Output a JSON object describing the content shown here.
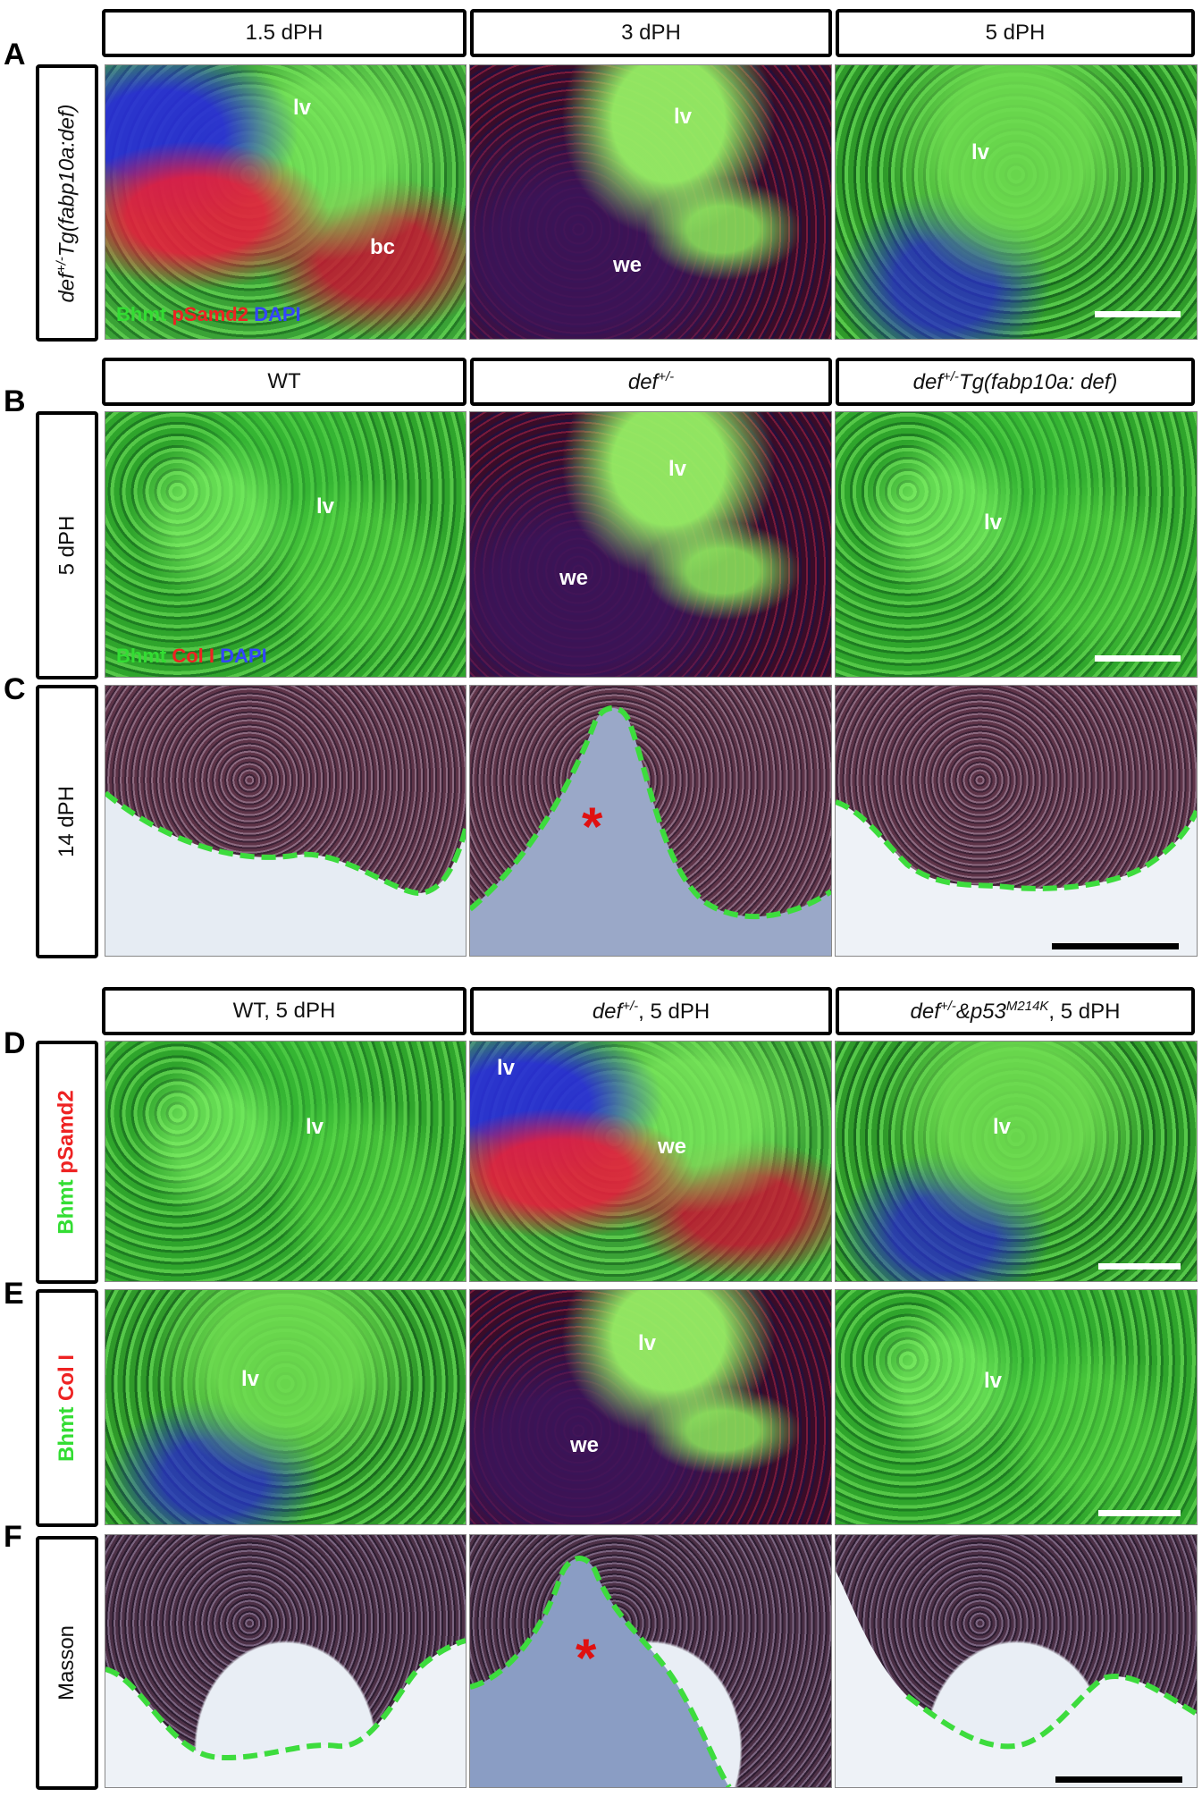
{
  "figure": {
    "rows": {
      "A": {
        "letter": "A",
        "side_label": {
          "pre": "def",
          "sup": "+/-",
          "post": "Tg(fabp10a:def)"
        },
        "headers": [
          {
            "main": "1.5 dPH"
          },
          {
            "main": "3 dPH"
          },
          {
            "main": "5 dPH"
          }
        ],
        "panel_labels": [
          [
            "lv",
            "bc"
          ],
          [
            "lv",
            "we"
          ],
          [
            "lv"
          ]
        ],
        "stain": {
          "green": "Bhmt",
          "red": "pSamd2",
          "blue": "DAPI"
        }
      },
      "B": {
        "letter": "B",
        "side_label": {
          "main": "5 dPH"
        },
        "headers": [
          {
            "main": "WT"
          },
          {
            "pre": "def",
            "sup": "+/-"
          },
          {
            "pre": "def",
            "sup": "+/-",
            "post": "Tg(fabp10a: def)"
          }
        ],
        "panel_labels": [
          [
            "lv"
          ],
          [
            "lv",
            "we"
          ],
          [
            "lv"
          ]
        ],
        "stain": {
          "green": "Bhmt",
          "red": "Col I",
          "blue": "DAPI"
        }
      },
      "C": {
        "letter": "C",
        "side_label": {
          "main": "14 dPH"
        },
        "asterisk": "*"
      },
      "D": {
        "letter": "D",
        "headers": [
          {
            "main": "WT, 5 dPH"
          },
          {
            "pre": "def",
            "sup": "+/-",
            "post": ", 5 dPH"
          },
          {
            "pre": "def",
            "sup": "+/-",
            "mid": "&p53",
            "sup2": "M214K",
            "post": ", 5 dPH"
          }
        ],
        "side_label": {
          "green": "Bhmt",
          "red": "pSamd2"
        },
        "panel_labels": [
          [
            "lv"
          ],
          [
            "lv",
            "we"
          ],
          [
            "lv"
          ]
        ]
      },
      "E": {
        "letter": "E",
        "side_label": {
          "green": "Bhmt",
          "red": "Col I"
        },
        "panel_labels": [
          [
            "lv"
          ],
          [
            "lv",
            "we"
          ],
          [
            "lv"
          ]
        ]
      },
      "F": {
        "letter": "F",
        "side_label": {
          "main": "Masson"
        },
        "asterisk": "*"
      }
    },
    "colors": {
      "green_text": "#33dd33",
      "red_text": "#ee2222",
      "blue_text": "#3344ff",
      "outline_dash": "#3ddc3d",
      "scale_white": "#ffffff",
      "scale_black": "#000000"
    }
  }
}
